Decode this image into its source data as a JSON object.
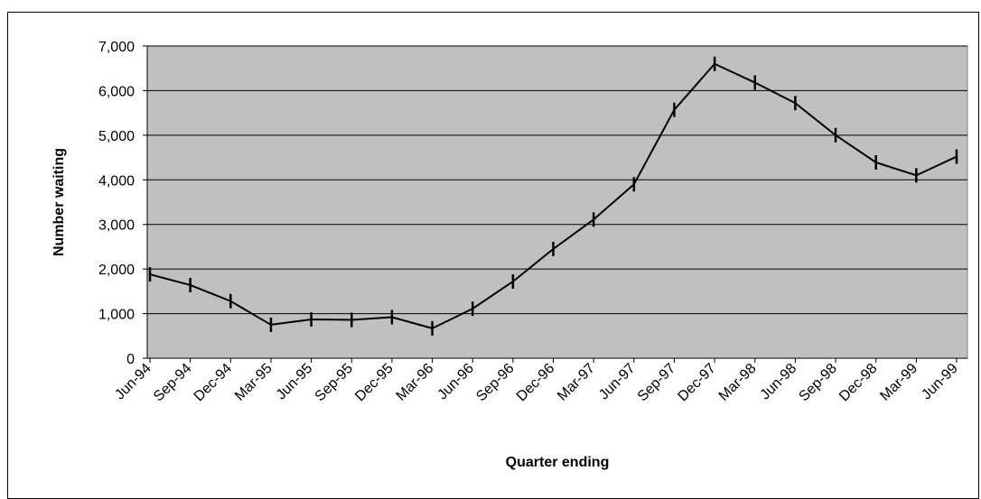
{
  "page": {
    "title": ""
  },
  "chart_data": {
    "type": "line",
    "title": "",
    "xlabel": "Quarter ending",
    "ylabel": "Number waiting",
    "categories": [
      "Jun-94",
      "Sep-94",
      "Dec-94",
      "Mar-95",
      "Jun-95",
      "Sep-95",
      "Dec-95",
      "Mar-96",
      "Jun-96",
      "Sep-96",
      "Dec-96",
      "Mar-97",
      "Jun-97",
      "Sep-97",
      "Dec-97",
      "Mar-98",
      "Jun-98",
      "Sep-98",
      "Dec-98",
      "Mar-99",
      "Jun-99"
    ],
    "series": [
      {
        "values": [
          1880,
          1640,
          1280,
          750,
          870,
          860,
          920,
          670,
          1110,
          1720,
          2450,
          3110,
          3900,
          5570,
          6600,
          6180,
          5720,
          5000,
          4390,
          4100,
          4520
        ]
      }
    ],
    "ylim": [
      0,
      7000
    ],
    "yticks": [
      0,
      1000,
      2000,
      3000,
      4000,
      5000,
      6000,
      7000
    ],
    "ytick_labels": [
      "0",
      "1,000",
      "2,000",
      "3,000",
      "4,000",
      "5,000",
      "6,000",
      "7,000"
    ],
    "grid": "horizontal",
    "legend": "none",
    "colors": {
      "plot_background": "#c0c0c0",
      "line": "#000000",
      "gridline": "#000000"
    }
  }
}
